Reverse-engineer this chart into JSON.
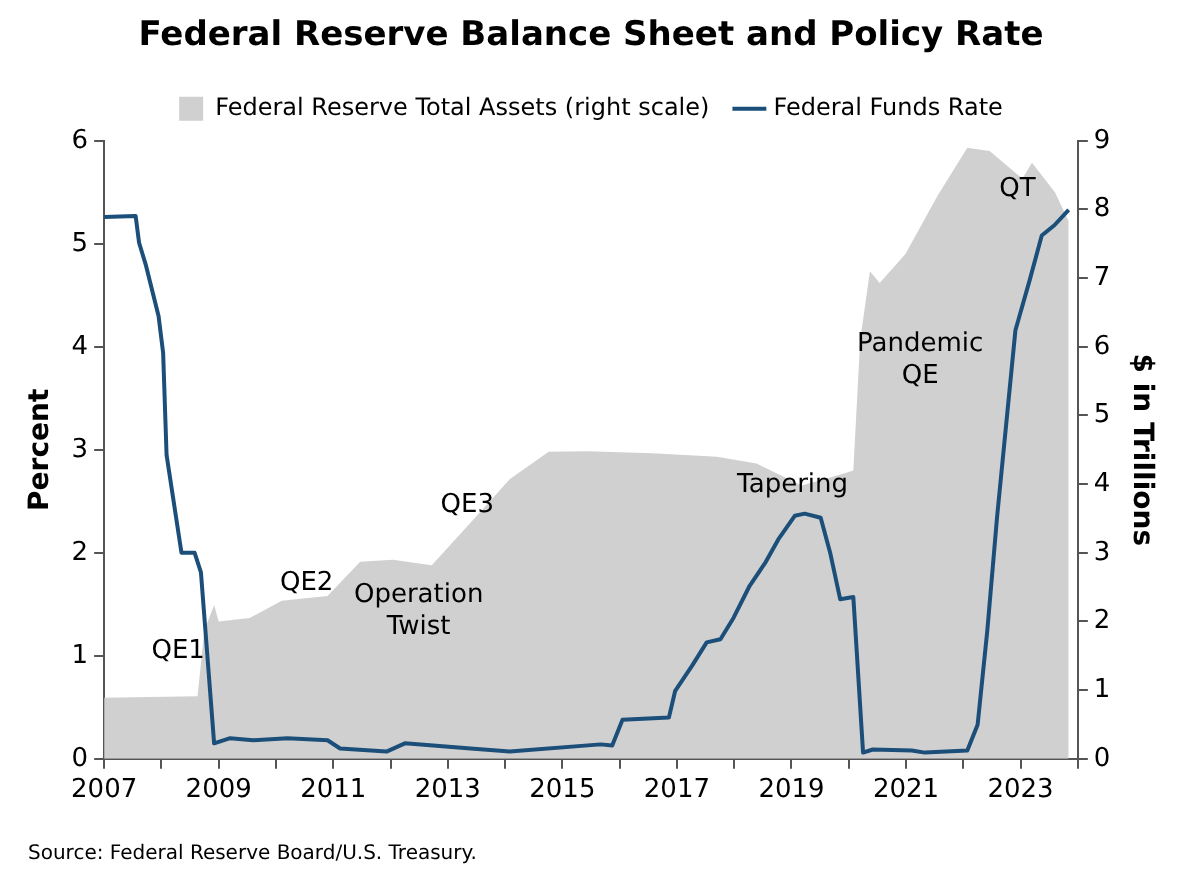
{
  "chart_data": {
    "type": "line",
    "title": "Federal Reserve Balance Sheet and Policy Rate",
    "ylabel": "Percent",
    "y2label": "$ in Trillions",
    "xlim": [
      2007,
      2024
    ],
    "xticks": [
      2007,
      {
        "value": 2008,
        "label": null
      },
      2009,
      {
        "value": 2010,
        "label": null
      },
      2011,
      {
        "value": 2012,
        "label": null
      },
      2013,
      {
        "value": 2014,
        "label": null
      },
      2015,
      {
        "value": 2016,
        "label": null
      },
      2017,
      {
        "value": 2018,
        "label": null
      },
      2019,
      {
        "value": 2020,
        "label": null
      },
      2021,
      {
        "value": 2022,
        "label": null
      },
      2023,
      {
        "value": 2024,
        "label": null
      }
    ],
    "ylim": [
      0,
      6
    ],
    "yticks": [
      0,
      1,
      2,
      3,
      4,
      5,
      6
    ],
    "y2lim": [
      0,
      9
    ],
    "y2ticks": [
      0,
      1,
      2,
      3,
      4,
      5,
      6,
      7,
      8,
      9
    ],
    "grid": false,
    "legend": "top",
    "marker": "none",
    "series": [
      {
        "name": "Federal Reserve Total Assets (right scale)",
        "type": "area",
        "axis": "y2",
        "color": "#d0d0d0",
        "x": [
          2007.0,
          2008.63,
          2008.75,
          2008.92,
          2009.0,
          2009.54,
          2010.1,
          2010.9,
          2011.47,
          2012.04,
          2012.72,
          2013.4,
          2014.08,
          2014.76,
          2015.44,
          2016.57,
          2017.7,
          2018.39,
          2019.18,
          2019.86,
          2020.08,
          2020.2,
          2020.37,
          2020.54,
          2020.99,
          2021.55,
          2022.07,
          2022.46,
          2023.03,
          2023.2,
          2023.6,
          2023.84
        ],
        "values": [
          0.89,
          0.91,
          1.87,
          2.24,
          2.0,
          2.05,
          2.3,
          2.37,
          2.87,
          2.9,
          2.82,
          3.44,
          4.07,
          4.47,
          4.48,
          4.45,
          4.4,
          4.3,
          3.98,
          4.14,
          4.2,
          6.1,
          7.1,
          6.93,
          7.35,
          8.2,
          8.9,
          8.85,
          8.45,
          8.68,
          8.25,
          7.83
        ]
      },
      {
        "name": "Federal Funds Rate",
        "type": "line",
        "axis": "y",
        "color": "#1b4f7a",
        "x": [
          2007.0,
          2007.55,
          2007.61,
          2007.73,
          2007.95,
          2008.03,
          2008.09,
          2008.35,
          2008.58,
          2008.69,
          2008.92,
          2009.2,
          2009.6,
          2010.2,
          2010.9,
          2011.12,
          2011.93,
          2012.25,
          2013.4,
          2014.08,
          2015.67,
          2015.87,
          2016.05,
          2016.86,
          2016.97,
          2017.26,
          2017.52,
          2017.76,
          2017.99,
          2018.27,
          2018.55,
          2018.77,
          2019.06,
          2019.23,
          2019.51,
          2019.68,
          2019.85,
          2020.08,
          2020.25,
          2020.42,
          2021.1,
          2021.33,
          2022.07,
          2022.25,
          2022.42,
          2022.59,
          2022.91,
          2023.16,
          2023.37,
          2023.59,
          2023.84
        ],
        "values": [
          5.26,
          5.27,
          5.01,
          4.79,
          4.3,
          3.94,
          2.95,
          2.0,
          2.0,
          1.81,
          0.15,
          0.2,
          0.18,
          0.2,
          0.18,
          0.1,
          0.07,
          0.15,
          0.1,
          0.07,
          0.14,
          0.13,
          0.38,
          0.4,
          0.66,
          0.9,
          1.13,
          1.16,
          1.37,
          1.68,
          1.91,
          2.13,
          2.36,
          2.38,
          2.34,
          1.99,
          1.55,
          1.57,
          0.06,
          0.09,
          0.08,
          0.06,
          0.08,
          0.33,
          1.25,
          2.35,
          4.16,
          4.65,
          5.08,
          5.18,
          5.33
        ]
      }
    ],
    "annotations": [
      "QE1",
      "QE2",
      "Operation\nTwist",
      "QE3",
      "Tapering",
      "Pandemic\nQE",
      "QT",
      "Source: Federal Reserve Board/U.S. Treasury."
    ]
  }
}
